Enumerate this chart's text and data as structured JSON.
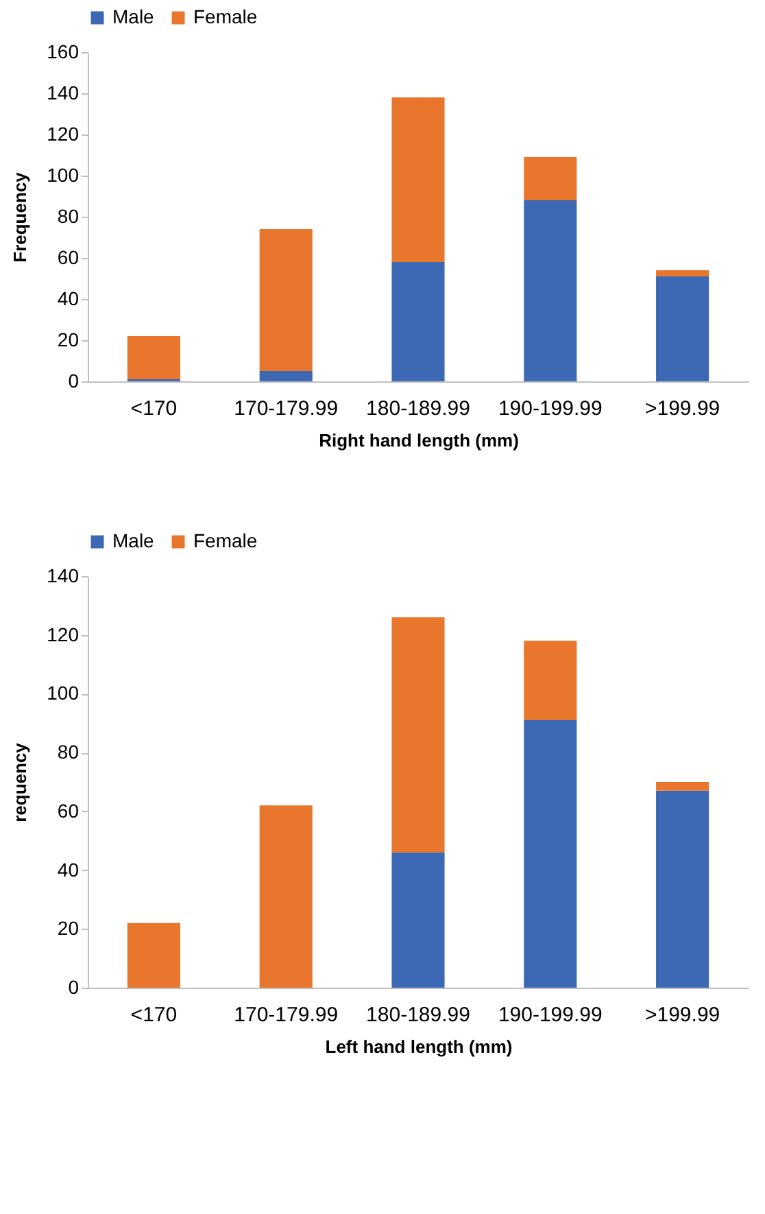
{
  "chart_data": [
    {
      "type": "bar",
      "stacked": true,
      "xlabel": "Right hand length  (mm)",
      "ylabel": "Frequency",
      "categories": [
        "<170",
        "170-179.99",
        "180-189.99",
        "190-199.99",
        ">199.99"
      ],
      "ylim": [
        0,
        160
      ],
      "yticks": [
        0,
        20,
        40,
        60,
        80,
        100,
        120,
        140,
        160
      ],
      "legend": "top",
      "grid": false,
      "series": [
        {
          "name": "Male",
          "color": "#3d68b4",
          "values": [
            1,
            5,
            58,
            88,
            51
          ]
        },
        {
          "name": "Female",
          "color": "#e8762d",
          "values": [
            21,
            69,
            80,
            21,
            3
          ]
        }
      ]
    },
    {
      "type": "bar",
      "stacked": true,
      "xlabel": "Left hand length (mm)",
      "ylabel": "requency",
      "categories": [
        "<170",
        "170-179.99",
        "180-189.99",
        "190-199.99",
        ">199.99"
      ],
      "ylim": [
        0,
        140
      ],
      "yticks": [
        0,
        20,
        40,
        60,
        80,
        100,
        120,
        140
      ],
      "legend": "top",
      "grid": false,
      "series": [
        {
          "name": "Male",
          "color": "#3d68b4",
          "values": [
            0,
            0,
            46,
            91,
            67
          ]
        },
        {
          "name": "Female",
          "color": "#e8762d",
          "values": [
            22,
            62,
            80,
            27,
            3
          ]
        }
      ]
    }
  ]
}
